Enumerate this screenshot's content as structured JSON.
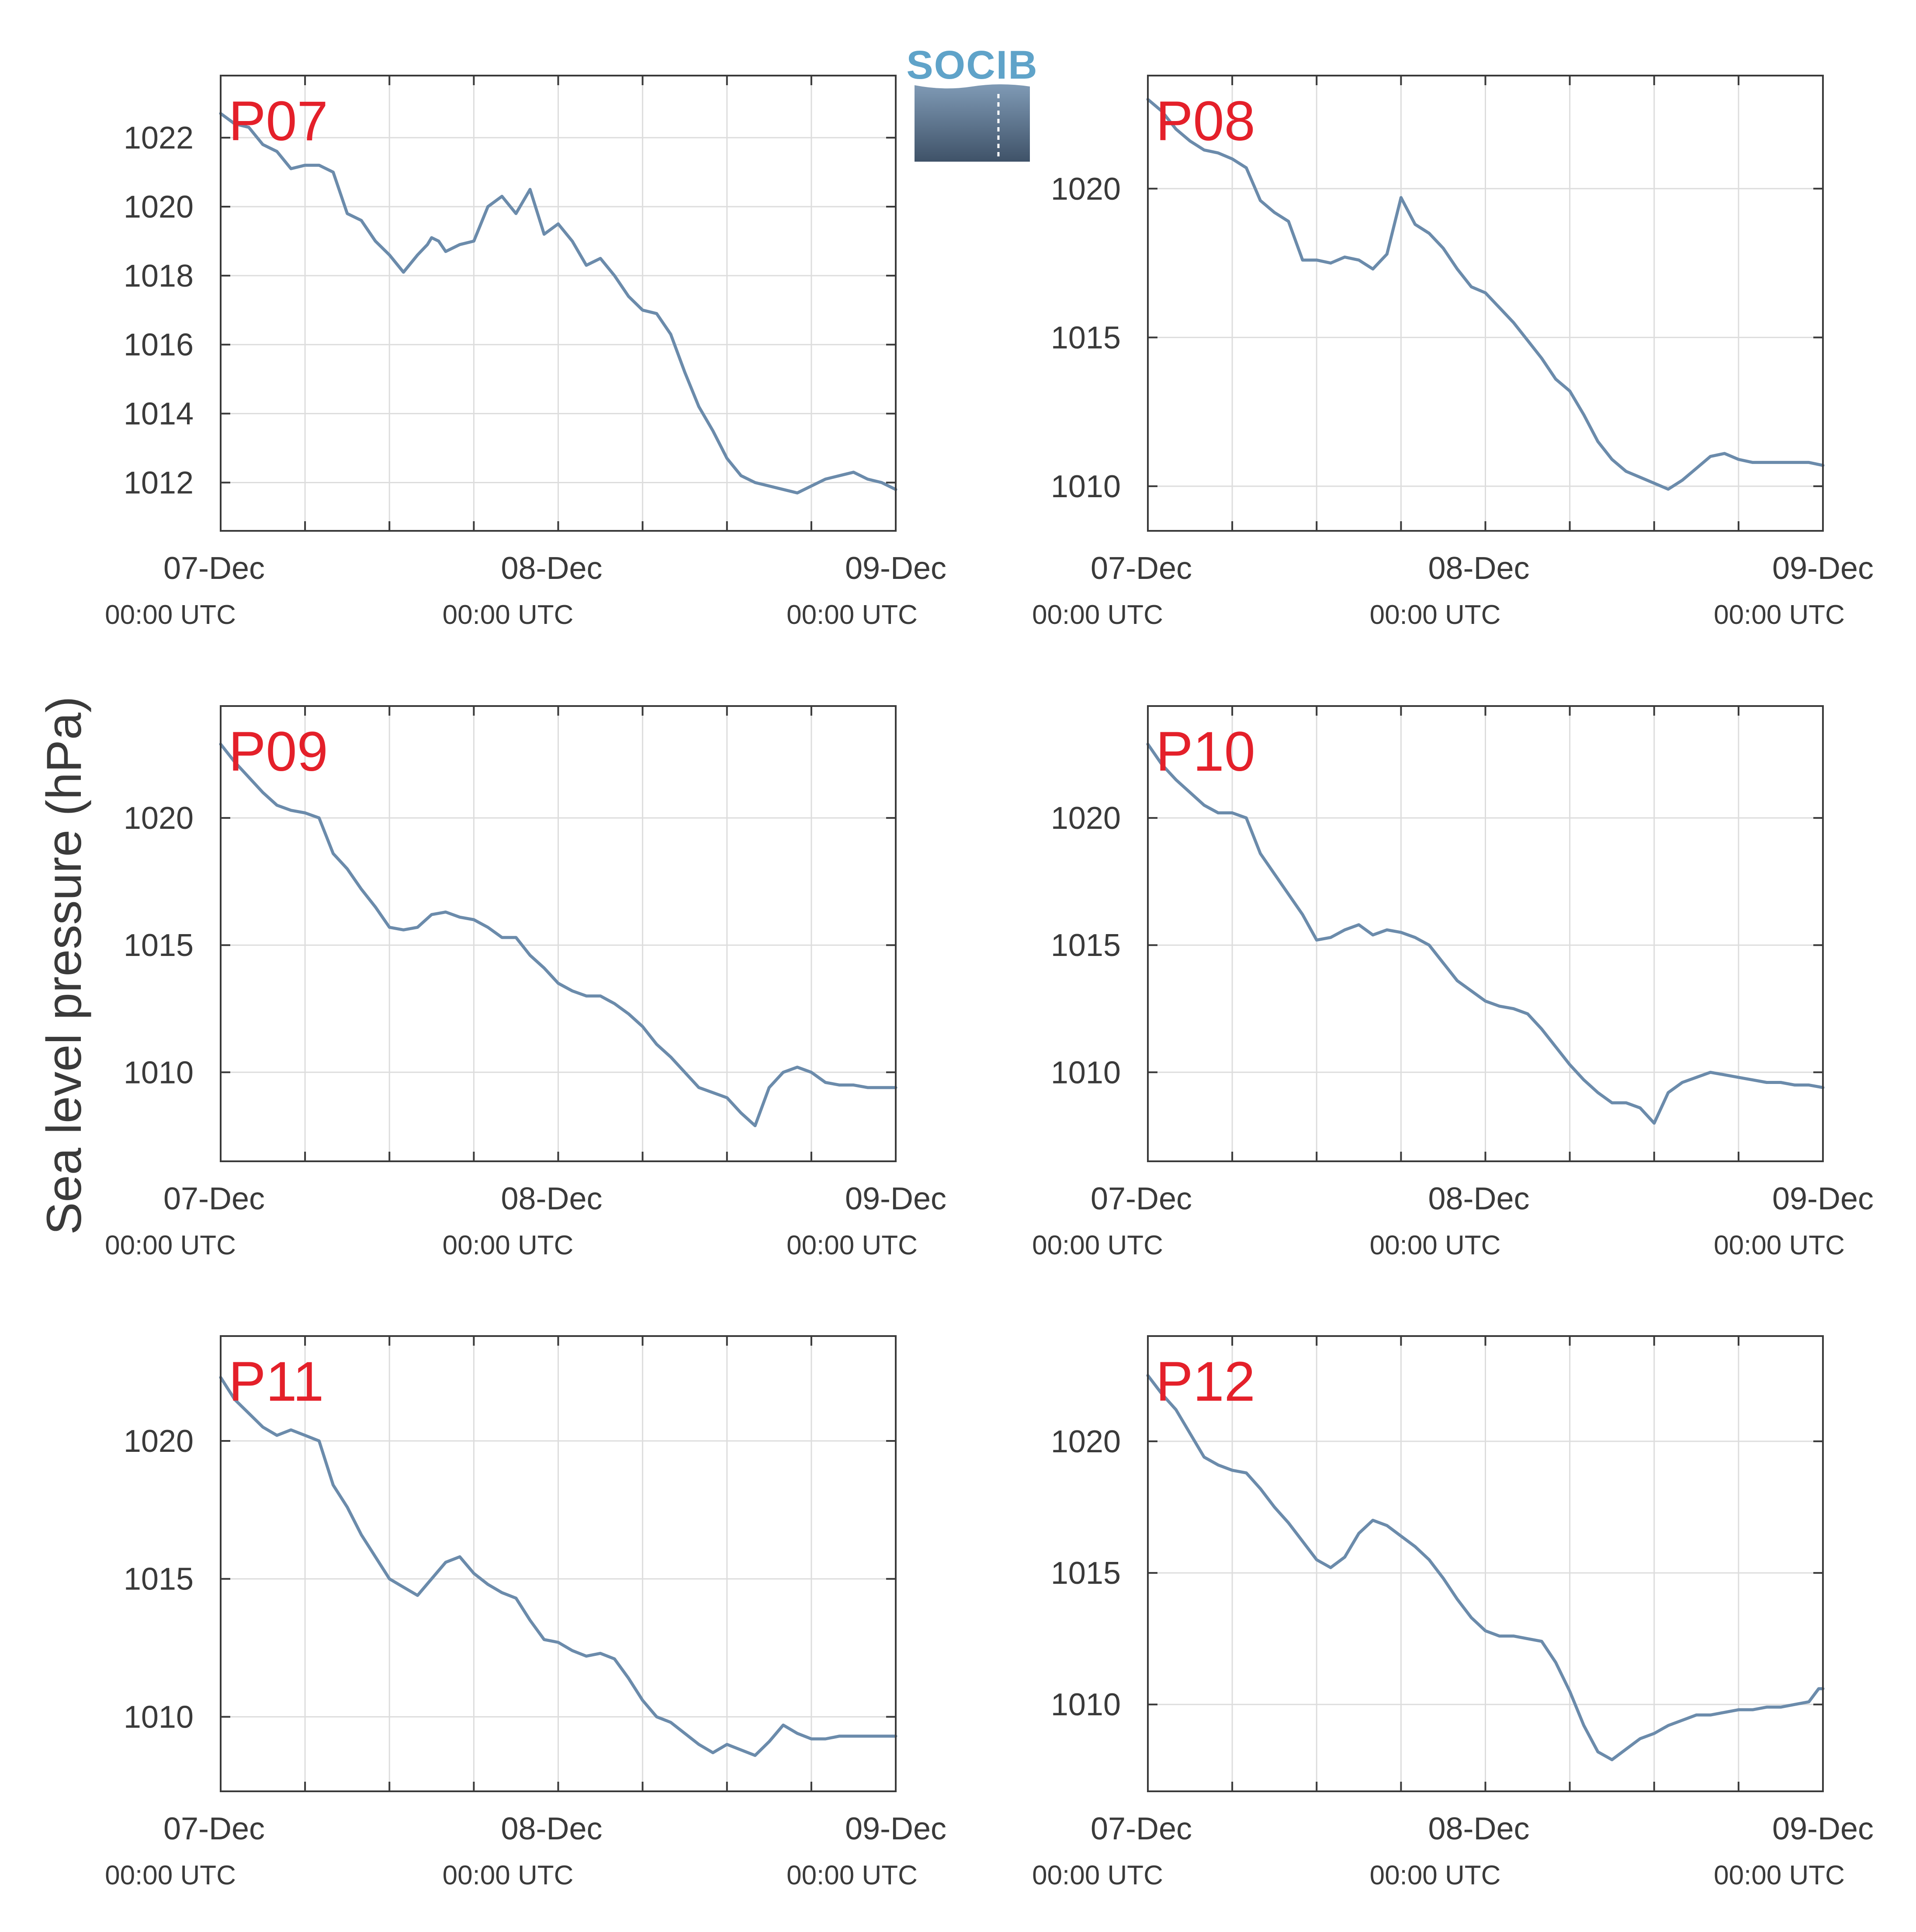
{
  "figure": {
    "ylabel": "Sea level pressure (hPa)",
    "logo_text": "SOCIB",
    "colors": {
      "line": "#6b8bab",
      "label": "#e4202a",
      "grid": "#dddddd",
      "axis": "#3a3a3a"
    },
    "x_tick_labels": [
      {
        "date": "07-Dec",
        "time": "00:00 UTC"
      },
      {
        "date": "08-Dec",
        "time": "00:00 UTC"
      },
      {
        "date": "09-Dec",
        "time": "00:00 UTC"
      }
    ]
  },
  "chart_data": [
    {
      "type": "line",
      "label": "P07",
      "x_unit": "hours since 07-Dec 00:00 UTC",
      "xlim": [
        0,
        48
      ],
      "ylim": [
        1010.6,
        1023.8
      ],
      "yticks": [
        1012,
        1014,
        1016,
        1018,
        1020,
        1022
      ],
      "x": [
        0,
        1,
        2,
        3,
        4,
        5,
        6,
        7,
        8,
        9,
        10,
        11,
        12,
        13,
        14,
        14.7,
        15,
        15.5,
        16,
        17,
        18,
        19,
        20,
        21,
        22,
        23,
        24,
        25,
        26,
        27,
        28,
        29,
        30,
        31,
        32,
        33,
        34,
        35,
        36,
        37,
        38,
        39,
        40,
        41,
        42,
        43,
        44,
        45,
        46,
        47,
        48
      ],
      "values": [
        1022.7,
        1022.4,
        1022.3,
        1021.8,
        1021.6,
        1021.1,
        1021.2,
        1021.2,
        1021.0,
        1019.8,
        1019.6,
        1019.0,
        1018.6,
        1018.1,
        1018.6,
        1018.9,
        1019.1,
        1019.0,
        1018.7,
        1018.9,
        1019.0,
        1020.0,
        1020.3,
        1019.8,
        1020.5,
        1019.2,
        1019.5,
        1019.0,
        1018.3,
        1018.5,
        1018.0,
        1017.4,
        1017.0,
        1016.9,
        1016.3,
        1015.2,
        1014.2,
        1013.5,
        1012.7,
        1012.2,
        1012.0,
        1011.9,
        1011.8,
        1011.7,
        1011.9,
        1012.1,
        1012.2,
        1012.3,
        1012.1,
        1012.0,
        1011.8
      ]
    },
    {
      "type": "line",
      "label": "P08",
      "x_unit": "hours since 07-Dec 00:00 UTC",
      "xlim": [
        0,
        48
      ],
      "ylim": [
        1008.5,
        1023.8
      ],
      "yticks": [
        1010,
        1015,
        1020
      ],
      "x": [
        0,
        1,
        2,
        3,
        4,
        5,
        6,
        7,
        8,
        9,
        10,
        11,
        12,
        13,
        14,
        15,
        16,
        17,
        18,
        19,
        20,
        21,
        22,
        23,
        24,
        25,
        26,
        27,
        28,
        29,
        30,
        31,
        32,
        33,
        34,
        35,
        36,
        37,
        38,
        39,
        40,
        41,
        42,
        43,
        44,
        45,
        46,
        47,
        48
      ],
      "values": [
        1023.0,
        1022.6,
        1022.0,
        1021.6,
        1021.3,
        1021.2,
        1021.0,
        1020.7,
        1019.6,
        1019.2,
        1018.9,
        1017.6,
        1017.6,
        1017.5,
        1017.7,
        1017.6,
        1017.3,
        1017.8,
        1019.7,
        1018.8,
        1018.5,
        1018.0,
        1017.3,
        1016.7,
        1016.5,
        1016.0,
        1015.5,
        1014.9,
        1014.3,
        1013.6,
        1013.2,
        1012.4,
        1011.5,
        1010.9,
        1010.5,
        1010.3,
        1010.1,
        1009.9,
        1010.2,
        1010.6,
        1011.0,
        1011.1,
        1010.9,
        1010.8,
        1010.8,
        1010.8,
        1010.8,
        1010.8,
        1010.7
      ]
    },
    {
      "type": "line",
      "label": "P09",
      "x_unit": "hours since 07-Dec 00:00 UTC",
      "xlim": [
        0,
        48
      ],
      "ylim": [
        1006.5,
        1024.4
      ],
      "yticks": [
        1010,
        1015,
        1020
      ],
      "x": [
        0,
        1,
        2,
        3,
        4,
        5,
        6,
        7,
        8,
        9,
        10,
        11,
        12,
        13,
        14,
        15,
        16,
        17,
        18,
        19,
        20,
        21,
        22,
        23,
        24,
        25,
        26,
        27,
        28,
        29,
        30,
        31,
        32,
        33,
        34,
        35,
        36,
        37,
        38,
        39,
        40,
        41,
        42,
        42.5,
        43,
        44,
        45,
        46,
        47,
        48
      ],
      "values": [
        1022.9,
        1022.2,
        1021.6,
        1021.0,
        1020.5,
        1020.3,
        1020.2,
        1020.0,
        1018.6,
        1018.0,
        1017.2,
        1016.5,
        1015.7,
        1015.6,
        1015.7,
        1016.2,
        1016.3,
        1016.1,
        1016.0,
        1015.7,
        1015.3,
        1015.3,
        1014.6,
        1014.1,
        1013.5,
        1013.2,
        1013.0,
        1013.0,
        1012.7,
        1012.3,
        1011.8,
        1011.1,
        1010.6,
        1010.0,
        1009.4,
        1009.2,
        1009.0,
        1008.4,
        1007.9,
        1009.4,
        1010.0,
        1010.2,
        1010.0,
        1009.8,
        1009.6,
        1009.5,
        1009.5,
        1009.4,
        1009.4,
        1009.4
      ]
    },
    {
      "type": "line",
      "label": "P10",
      "x_unit": "hours since 07-Dec 00:00 UTC",
      "xlim": [
        0,
        48
      ],
      "ylim": [
        1006.5,
        1024.4
      ],
      "yticks": [
        1010,
        1015,
        1020
      ],
      "x": [
        0,
        1,
        2,
        3,
        4,
        5,
        6,
        7,
        8,
        9,
        10,
        11,
        12,
        13,
        14,
        15,
        16,
        17,
        18,
        19,
        20,
        21,
        22,
        23,
        24,
        25,
        26,
        27,
        28,
        29,
        30,
        31,
        32,
        33,
        34,
        35,
        36,
        37,
        38,
        39,
        40,
        41,
        42,
        43,
        44,
        45,
        46,
        47,
        48
      ],
      "values": [
        1022.9,
        1022.1,
        1021.5,
        1021.0,
        1020.5,
        1020.2,
        1020.2,
        1020.0,
        1018.6,
        1017.8,
        1017.0,
        1016.2,
        1015.2,
        1015.3,
        1015.6,
        1015.8,
        1015.4,
        1015.6,
        1015.5,
        1015.3,
        1015.0,
        1014.3,
        1013.6,
        1013.2,
        1012.8,
        1012.6,
        1012.5,
        1012.3,
        1011.7,
        1011.0,
        1010.3,
        1009.7,
        1009.2,
        1008.8,
        1008.8,
        1008.6,
        1008.0,
        1009.2,
        1009.6,
        1009.8,
        1010.0,
        1009.9,
        1009.8,
        1009.7,
        1009.6,
        1009.6,
        1009.5,
        1009.5,
        1009.4
      ]
    },
    {
      "type": "line",
      "label": "P11",
      "x_unit": "hours since 07-Dec 00:00 UTC",
      "xlim": [
        0,
        48
      ],
      "ylim": [
        1007.3,
        1023.8
      ],
      "yticks": [
        1010,
        1015,
        1020
      ],
      "x": [
        0,
        1,
        2,
        3,
        4,
        5,
        6,
        7,
        8,
        9,
        10,
        11,
        12,
        13,
        14,
        15,
        16,
        17,
        18,
        19,
        20,
        21,
        22,
        23,
        24,
        25,
        26,
        27,
        28,
        29,
        30,
        31,
        32,
        33,
        34,
        35,
        36,
        37,
        38,
        39,
        40,
        41,
        42,
        43,
        44,
        45,
        46,
        47,
        48
      ],
      "values": [
        1022.3,
        1021.5,
        1021.0,
        1020.5,
        1020.2,
        1020.4,
        1020.2,
        1020.0,
        1018.4,
        1017.6,
        1016.6,
        1015.8,
        1015.0,
        1014.7,
        1014.4,
        1015.0,
        1015.6,
        1015.8,
        1015.2,
        1014.8,
        1014.5,
        1014.3,
        1013.5,
        1012.8,
        1012.7,
        1012.4,
        1012.2,
        1012.3,
        1012.1,
        1011.4,
        1010.6,
        1010.0,
        1009.8,
        1009.4,
        1009.0,
        1008.7,
        1009.0,
        1008.8,
        1008.6,
        1009.1,
        1009.7,
        1009.4,
        1009.2,
        1009.2,
        1009.3,
        1009.3,
        1009.3,
        1009.3,
        1009.3
      ]
    },
    {
      "type": "line",
      "label": "P12",
      "x_unit": "hours since 07-Dec 00:00 UTC",
      "xlim": [
        0,
        48
      ],
      "ylim": [
        1006.7,
        1024.0
      ],
      "yticks": [
        1010,
        1015,
        1020
      ],
      "x": [
        0,
        1,
        2,
        3,
        4,
        5,
        6,
        7,
        8,
        9,
        10,
        11,
        12,
        13,
        14,
        15,
        16,
        17,
        18,
        19,
        20,
        21,
        22,
        23,
        24,
        25,
        26,
        27,
        28,
        29,
        30,
        31,
        32,
        33,
        34,
        35,
        36,
        37,
        38,
        39,
        40,
        41,
        42,
        43,
        44,
        45,
        46,
        47,
        47.7,
        48
      ],
      "values": [
        1022.5,
        1021.8,
        1021.2,
        1020.3,
        1019.4,
        1019.1,
        1018.9,
        1018.8,
        1018.2,
        1017.5,
        1016.9,
        1016.2,
        1015.5,
        1015.2,
        1015.6,
        1016.5,
        1017.0,
        1016.8,
        1016.4,
        1016.0,
        1015.5,
        1014.8,
        1014.0,
        1013.3,
        1012.8,
        1012.6,
        1012.6,
        1012.5,
        1012.4,
        1011.6,
        1010.5,
        1009.2,
        1008.2,
        1007.9,
        1008.3,
        1008.7,
        1008.9,
        1009.2,
        1009.4,
        1009.6,
        1009.6,
        1009.7,
        1009.8,
        1009.8,
        1009.9,
        1009.9,
        1010.0,
        1010.1,
        1010.6,
        1010.6
      ]
    }
  ]
}
